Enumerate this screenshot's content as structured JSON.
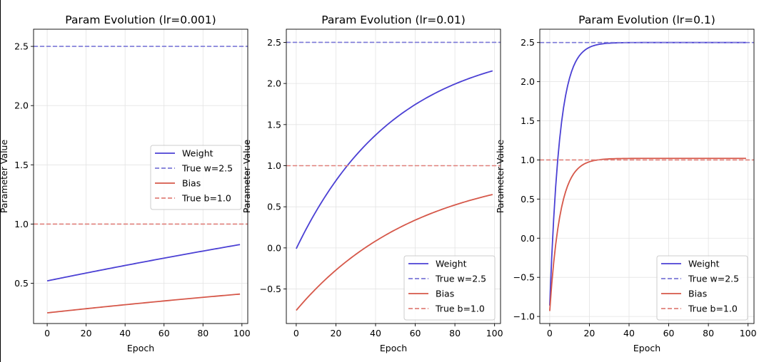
{
  "figure": {
    "background": "#ffffff"
  },
  "chart_data": [
    {
      "type": "line",
      "title": "Param Evolution (lr=0.001)",
      "xlabel": "Epoch",
      "ylabel": "Parameter Value",
      "xlim": [
        -7,
        103
      ],
      "ylim": [
        0.16,
        2.645
      ],
      "xticks": [
        0,
        20,
        40,
        60,
        80,
        100
      ],
      "yticks": [
        0.5,
        1.0,
        1.5,
        2.0,
        2.5
      ],
      "ytick_labels": [
        "0.5",
        "1.0",
        "1.5",
        "2.0",
        "2.5"
      ],
      "grid": true,
      "legend_position": "center-right",
      "series": [
        {
          "name": "Weight",
          "kind": "curve",
          "w0": 0.52,
          "wend": 2.5,
          "k": 0.0017,
          "color": "#4b40d4",
          "dash": "solid"
        },
        {
          "name": "True w=2.5",
          "kind": "hline",
          "value": 2.5,
          "color": "#7b78d8",
          "dash": "dashed"
        },
        {
          "name": "Bias",
          "kind": "curve",
          "w0": 0.25,
          "wend": 1.0,
          "k": 0.0024,
          "color": "#d6584a",
          "dash": "solid"
        },
        {
          "name": "True b=1.0",
          "kind": "hline",
          "value": 1.0,
          "color": "#e0807a",
          "dash": "dashed"
        }
      ]
    },
    {
      "type": "line",
      "title": "Param Evolution (lr=0.01)",
      "xlabel": "Epoch",
      "ylabel": "Parameter Value",
      "xlim": [
        -5,
        103
      ],
      "ylim": [
        -0.92,
        2.66
      ],
      "xticks": [
        0,
        20,
        40,
        60,
        80,
        100
      ],
      "yticks": [
        -0.5,
        0.0,
        0.5,
        1.0,
        1.5,
        2.0,
        2.5
      ],
      "ytick_labels": [
        "−0.5",
        "0.0",
        "0.5",
        "1.0",
        "1.5",
        "2.0",
        "2.5"
      ],
      "grid": true,
      "legend_position": "lower-right",
      "series": [
        {
          "name": "Weight",
          "kind": "curve",
          "w0": -0.01,
          "wend": 2.5,
          "k": 0.02,
          "color": "#4b40d4",
          "dash": "solid"
        },
        {
          "name": "True w=2.5",
          "kind": "hline",
          "value": 2.5,
          "color": "#7b78d8",
          "dash": "dashed"
        },
        {
          "name": "Bias",
          "kind": "curve",
          "w0": -0.76,
          "wend": 1.0,
          "k": 0.0163,
          "color": "#d6584a",
          "dash": "solid"
        },
        {
          "name": "True b=1.0",
          "kind": "hline",
          "value": 1.0,
          "color": "#e0807a",
          "dash": "dashed"
        }
      ]
    },
    {
      "type": "line",
      "title": "Param Evolution (lr=0.1)",
      "xlabel": "Epoch",
      "ylabel": "Parameter Value",
      "xlim": [
        -5,
        103
      ],
      "ylim": [
        -1.09,
        2.67
      ],
      "xticks": [
        0,
        20,
        40,
        60,
        80,
        100
      ],
      "yticks": [
        -1.0,
        -0.5,
        0.0,
        0.5,
        1.0,
        1.5,
        2.0,
        2.5
      ],
      "ytick_labels": [
        "−1.0",
        "−0.5",
        "0.0",
        "0.5",
        "1.0",
        "1.5",
        "2.0",
        "2.5"
      ],
      "grid": true,
      "legend_position": "lower-right",
      "series": [
        {
          "name": "Weight",
          "kind": "curve",
          "w0": -0.86,
          "wend": 2.5,
          "k": 0.2,
          "color": "#4b40d4",
          "dash": "solid"
        },
        {
          "name": "True w=2.5",
          "kind": "hline",
          "value": 2.5,
          "color": "#7b78d8",
          "dash": "dashed"
        },
        {
          "name": "Bias",
          "kind": "curve",
          "w0": -0.93,
          "wend": 1.02,
          "k": 0.19,
          "color": "#d6584a",
          "dash": "solid"
        },
        {
          "name": "True b=1.0",
          "kind": "hline",
          "value": 1.0,
          "color": "#e0807a",
          "dash": "dashed"
        }
      ]
    }
  ]
}
